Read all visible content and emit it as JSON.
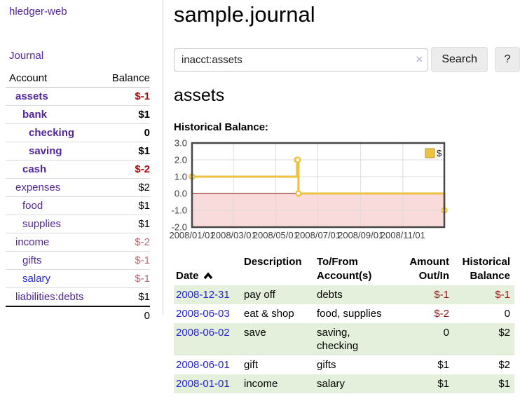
{
  "colors": {
    "link_purple": "#53279c",
    "link_blue": "#2222d8",
    "negative_strong": "#a30d12",
    "negative_soft": "#b4696f",
    "table_negative": "#991414",
    "zebra_green": "#e4f0db",
    "series_gold": "#edc240"
  },
  "app": {
    "brand": "hledger-web",
    "nav_journal": "Journal"
  },
  "sidebar": {
    "header": {
      "account": "Account",
      "balance": "Balance"
    },
    "accounts": [
      {
        "name": "assets",
        "balance": "$-1",
        "indent": 1,
        "bold": true,
        "neg": "strong"
      },
      {
        "name": "bank",
        "balance": "$1",
        "indent": 2,
        "bold": true
      },
      {
        "name": "checking",
        "balance": "0",
        "indent": 3,
        "bold": true
      },
      {
        "name": "saving",
        "balance": "$1",
        "indent": 3,
        "bold": true
      },
      {
        "name": "cash",
        "balance": "$-2",
        "indent": 2,
        "bold": true,
        "neg": "strong"
      },
      {
        "name": "expenses",
        "balance": "$2",
        "indent": 1
      },
      {
        "name": "food",
        "balance": "$1",
        "indent": 2
      },
      {
        "name": "supplies",
        "balance": "$1",
        "indent": 2
      },
      {
        "name": "income",
        "balance": "$-2",
        "indent": 1,
        "neg": "soft"
      },
      {
        "name": "gifts",
        "balance": "$-1",
        "indent": 2,
        "neg": "soft"
      },
      {
        "name": "salary",
        "balance": "$-1",
        "indent": 2,
        "neg": "soft",
        "link_color": "blue"
      },
      {
        "name": "liabilities:debts",
        "balance": "$1",
        "indent": 1
      }
    ],
    "total": "0"
  },
  "header": {
    "title": "sample.journal"
  },
  "search": {
    "value": "inacct:assets",
    "clear_icon": "×",
    "button_label": "Search",
    "help_label": "?"
  },
  "account_page": {
    "heading": "assets"
  },
  "chart_data": {
    "type": "line",
    "title": "Historical Balance:",
    "series": [
      {
        "name": "$",
        "color": "#edc240",
        "step": true,
        "points": [
          {
            "date": "2008-01-01",
            "value": 1
          },
          {
            "date": "2008-06-01",
            "value": 2
          },
          {
            "date": "2008-06-02",
            "value": 2
          },
          {
            "date": "2008-06-03",
            "value": 0
          },
          {
            "date": "2008-12-31",
            "value": -1
          }
        ]
      }
    ],
    "x_range": [
      "2008-01-01",
      "2008-12-31"
    ],
    "x_ticks": [
      "2008/01/01",
      "2008/03/01",
      "2008/05/01",
      "2008/07/01",
      "2008/09/01",
      "2008/11/01"
    ],
    "y_range": [
      -2,
      3
    ],
    "y_ticks": [
      3.0,
      2.0,
      1.0,
      0.0,
      -1.0,
      -2.0
    ],
    "grid": true,
    "legend_position": "top-right",
    "negative_region_color": "#fadbdb",
    "zero_line_color": "#8b0000"
  },
  "register": {
    "columns": [
      {
        "label": "Date"
      },
      {
        "label": "Description"
      },
      {
        "label": "To/From\nAccount(s)"
      },
      {
        "label": "Amount\nOut/In"
      },
      {
        "label": "Historical\nBalance"
      }
    ],
    "rows": [
      {
        "date": "2008-12-31",
        "description": "pay off",
        "accounts": "debts",
        "amount": "$-1",
        "balance": "$-1"
      },
      {
        "date": "2008-06-03",
        "description": "eat & shop",
        "accounts": "food, supplies",
        "amount": "$-2",
        "balance": "0"
      },
      {
        "date": "2008-06-02",
        "description": "save",
        "accounts": "saving,\nchecking",
        "amount": "0",
        "balance": "$2"
      },
      {
        "date": "2008-06-01",
        "description": "gift",
        "accounts": "gifts",
        "amount": "$1",
        "balance": "$2"
      },
      {
        "date": "2008-01-01",
        "description": "income",
        "accounts": "salary",
        "amount": "$1",
        "balance": "$1"
      }
    ]
  }
}
